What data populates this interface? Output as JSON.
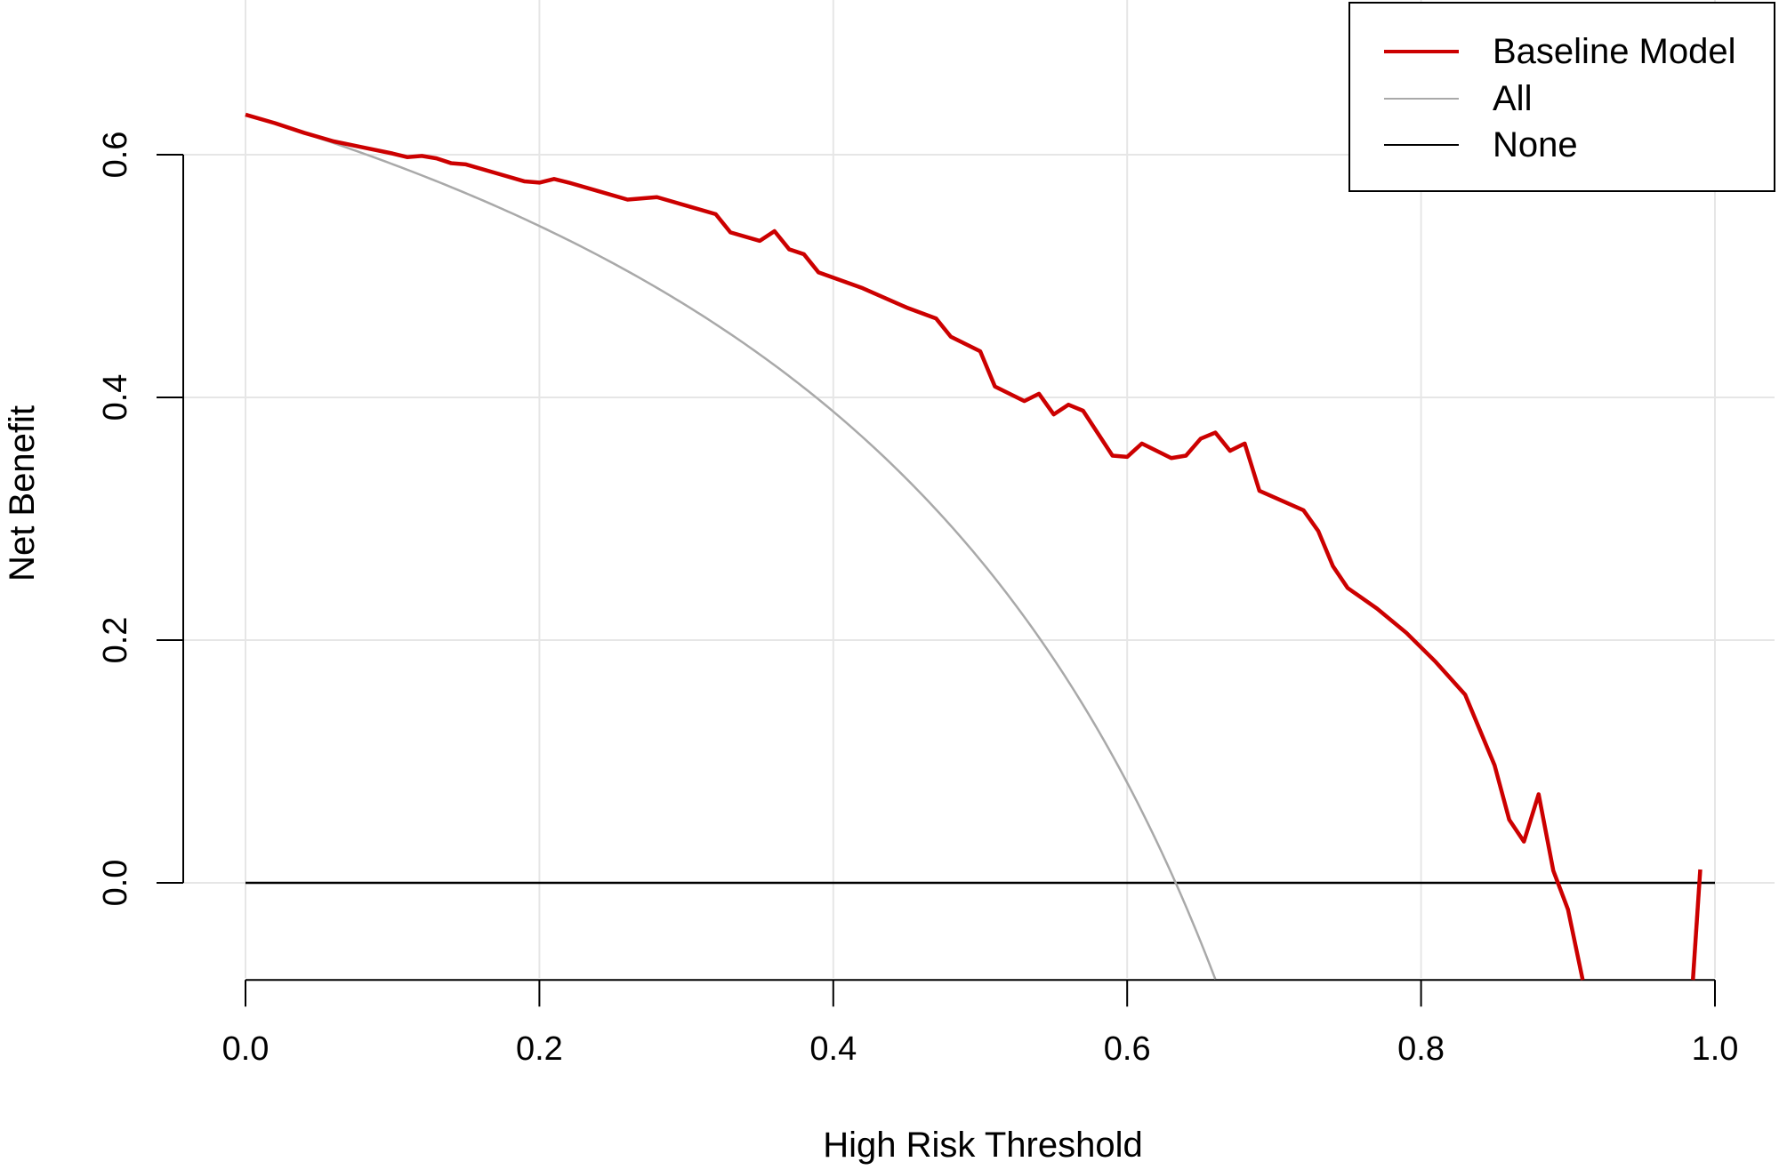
{
  "chart_data": {
    "type": "line",
    "title": "",
    "xlabel": "High Risk Threshold",
    "ylabel": "Net Benefit",
    "xlim": [
      0,
      1
    ],
    "ylim": [
      -0.08,
      0.7
    ],
    "x_ticks": [
      0.0,
      0.2,
      0.4,
      0.6,
      0.8,
      1.0
    ],
    "x_tick_labels": [
      "0.0",
      "0.2",
      "0.4",
      "0.6",
      "0.8",
      "1.0"
    ],
    "y_ticks": [
      0.0,
      0.2,
      0.4,
      0.6
    ],
    "y_tick_labels": [
      "0.0",
      "0.2",
      "0.4",
      "0.6"
    ],
    "grid": true,
    "legend_position": "top-right",
    "prevalence": 0.633,
    "series": [
      {
        "name": "Baseline Model",
        "color": "#cc0000",
        "points": [
          [
            0.0,
            0.633
          ],
          [
            0.02,
            0.626
          ],
          [
            0.04,
            0.618
          ],
          [
            0.06,
            0.611
          ],
          [
            0.08,
            0.606
          ],
          [
            0.1,
            0.601
          ],
          [
            0.11,
            0.598
          ],
          [
            0.12,
            0.599
          ],
          [
            0.13,
            0.597
          ],
          [
            0.14,
            0.593
          ],
          [
            0.15,
            0.592
          ],
          [
            0.17,
            0.585
          ],
          [
            0.19,
            0.578
          ],
          [
            0.2,
            0.577
          ],
          [
            0.21,
            0.58
          ],
          [
            0.22,
            0.577
          ],
          [
            0.24,
            0.57
          ],
          [
            0.26,
            0.563
          ],
          [
            0.28,
            0.565
          ],
          [
            0.3,
            0.558
          ],
          [
            0.32,
            0.551
          ],
          [
            0.33,
            0.536
          ],
          [
            0.35,
            0.529
          ],
          [
            0.36,
            0.537
          ],
          [
            0.37,
            0.522
          ],
          [
            0.38,
            0.518
          ],
          [
            0.39,
            0.503
          ],
          [
            0.42,
            0.49
          ],
          [
            0.45,
            0.474
          ],
          [
            0.47,
            0.465
          ],
          [
            0.48,
            0.45
          ],
          [
            0.5,
            0.438
          ],
          [
            0.51,
            0.409
          ],
          [
            0.53,
            0.397
          ],
          [
            0.54,
            0.403
          ],
          [
            0.55,
            0.386
          ],
          [
            0.56,
            0.394
          ],
          [
            0.57,
            0.389
          ],
          [
            0.59,
            0.352
          ],
          [
            0.6,
            0.351
          ],
          [
            0.61,
            0.362
          ],
          [
            0.63,
            0.35
          ],
          [
            0.64,
            0.352
          ],
          [
            0.65,
            0.366
          ],
          [
            0.66,
            0.371
          ],
          [
            0.67,
            0.356
          ],
          [
            0.68,
            0.362
          ],
          [
            0.69,
            0.323
          ],
          [
            0.72,
            0.307
          ],
          [
            0.73,
            0.29
          ],
          [
            0.74,
            0.261
          ],
          [
            0.75,
            0.243
          ],
          [
            0.77,
            0.226
          ],
          [
            0.79,
            0.206
          ],
          [
            0.81,
            0.182
          ],
          [
            0.83,
            0.155
          ],
          [
            0.85,
            0.097
          ],
          [
            0.86,
            0.052
          ],
          [
            0.87,
            0.034
          ],
          [
            0.88,
            0.073
          ],
          [
            0.89,
            0.01
          ],
          [
            0.9,
            -0.022
          ],
          [
            0.91,
            -0.08
          ]
        ],
        "extra_segment": [
          [
            0.985,
            -0.08
          ],
          [
            0.99,
            0.011
          ]
        ]
      },
      {
        "name": "All",
        "color": "#a9a9a9",
        "formula": "prevalence - (1 - prevalence) * t / (1 - t)",
        "x_range": [
          0.0,
          0.66
        ]
      },
      {
        "name": "None",
        "color": "#000000",
        "points": [
          [
            0.0,
            0.0
          ],
          [
            1.0,
            0.0
          ]
        ]
      }
    ]
  }
}
